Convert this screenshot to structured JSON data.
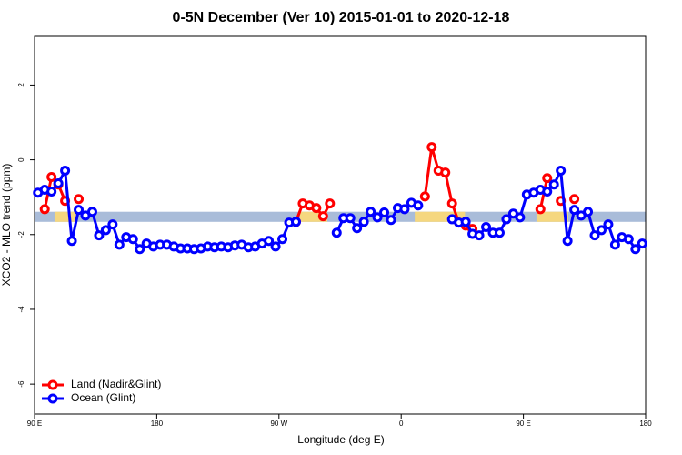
{
  "chart_data": {
    "type": "line",
    "title": "0-5N December (Ver 10)   2015-01-01 to 2020-12-18",
    "x_label": "Longitude (deg E)",
    "y_label": "XCO2 - MLO trend (ppm)",
    "xlim": [
      90,
      540
    ],
    "xticks": [
      {
        "value": 90,
        "label": "90 E"
      },
      {
        "value": 180,
        "label": "180"
      },
      {
        "value": 270,
        "label": "90 W"
      },
      {
        "value": 360,
        "label": "0"
      },
      {
        "value": 450,
        "label": "90 E"
      },
      {
        "value": 540,
        "label": "180"
      }
    ],
    "ylim": [
      -6.8,
      3.3
    ],
    "yticks": [
      -6,
      -4,
      -2,
      0,
      2
    ],
    "legend": "bottom-left",
    "band": {
      "y": [
        -1.66,
        -1.39
      ],
      "ocean_color": "#a9bcd9",
      "land_color": "#f5d77f",
      "land": [
        [
          104.7,
          121.5
        ],
        [
          285.5,
          305.6
        ],
        [
          370,
          407
        ],
        [
          459.6,
          483
        ]
      ]
    },
    "x": [
      92.5,
      97.5,
      102.5,
      107.5,
      112.5,
      117.5,
      122.5,
      127.5,
      132.5,
      137.5,
      142.5,
      147.5,
      152.5,
      157.5,
      162.5,
      167.5,
      172.5,
      177.5,
      182.5,
      187.5,
      192.5,
      197.5,
      202.5,
      207.5,
      212.5,
      217.5,
      222.5,
      227.5,
      232.5,
      237.5,
      242.5,
      247.5,
      252.5,
      257.5,
      262.5,
      267.5,
      272.5,
      277.5,
      282.5,
      287.5,
      292.5,
      297.5,
      302.5,
      307.5,
      312.5,
      317.5,
      322.5,
      327.5,
      332.5,
      337.5,
      342.5,
      347.5,
      352.5,
      357.5,
      362.5,
      367.5,
      372.5,
      377.5,
      382.5,
      387.5,
      392.5,
      397.5,
      402.5,
      407.5,
      412.5,
      417.5,
      422.5,
      427.5,
      432.5,
      437.5,
      442.5,
      447.5,
      452.5,
      457.5,
      462.5,
      467.5,
      472.5,
      477.5,
      482.5,
      487.5,
      492.5,
      497.5,
      502.5,
      507.5,
      512.5,
      517.5,
      522.5,
      527.5,
      532.5,
      537.5
    ],
    "series": [
      {
        "name": "Land (Nadir&Glint)",
        "color": "#ff0000",
        "values": [
          null,
          -1.32,
          -0.46,
          -0.66,
          -1.1,
          null,
          -1.05,
          null,
          null,
          null,
          null,
          null,
          null,
          null,
          null,
          null,
          null,
          null,
          null,
          null,
          null,
          null,
          null,
          null,
          null,
          null,
          null,
          null,
          null,
          null,
          null,
          null,
          null,
          null,
          null,
          null,
          null,
          null,
          -1.66,
          -1.17,
          -1.22,
          -1.29,
          -1.51,
          -1.17,
          null,
          null,
          null,
          null,
          null,
          null,
          null,
          null,
          null,
          null,
          null,
          null,
          null,
          -0.98,
          0.34,
          -0.29,
          -0.34,
          -1.17,
          -1.68,
          -1.76,
          -1.85,
          null,
          null,
          null,
          null,
          null,
          null,
          null,
          null,
          null,
          -1.32,
          -0.49,
          null,
          -1.1,
          null,
          -1.05,
          null,
          null,
          null,
          null,
          null,
          null,
          null,
          null,
          null,
          null
        ]
      },
      {
        "name": "Ocean (Glint)",
        "color": "#0000ff",
        "values": [
          -0.88,
          -0.8,
          -0.85,
          -0.63,
          -0.29,
          -2.17,
          -1.34,
          -1.49,
          -1.39,
          -2.02,
          -1.88,
          -1.73,
          -2.27,
          -2.07,
          -2.12,
          -2.39,
          -2.24,
          -2.32,
          -2.27,
          -2.27,
          -2.32,
          -2.37,
          -2.37,
          -2.39,
          -2.37,
          -2.32,
          -2.34,
          -2.32,
          -2.34,
          -2.29,
          -2.27,
          -2.34,
          -2.32,
          -2.24,
          -2.17,
          -2.32,
          -2.12,
          -1.68,
          -1.66,
          null,
          null,
          null,
          null,
          null,
          -1.95,
          -1.56,
          -1.56,
          -1.83,
          -1.66,
          -1.39,
          -1.54,
          -1.41,
          -1.61,
          -1.29,
          -1.32,
          -1.15,
          -1.22,
          null,
          null,
          null,
          null,
          -1.59,
          -1.68,
          -1.66,
          -1.98,
          -2.02,
          -1.8,
          -1.95,
          -1.95,
          -1.59,
          -1.44,
          -1.54,
          -0.93,
          -0.88,
          -0.8,
          -0.85,
          -0.66,
          -0.29,
          -2.17,
          -1.34,
          -1.49,
          -1.39,
          -2.02,
          -1.88,
          -1.73,
          -2.27,
          -2.07,
          -2.12,
          -2.39,
          -2.24
        ]
      }
    ]
  }
}
